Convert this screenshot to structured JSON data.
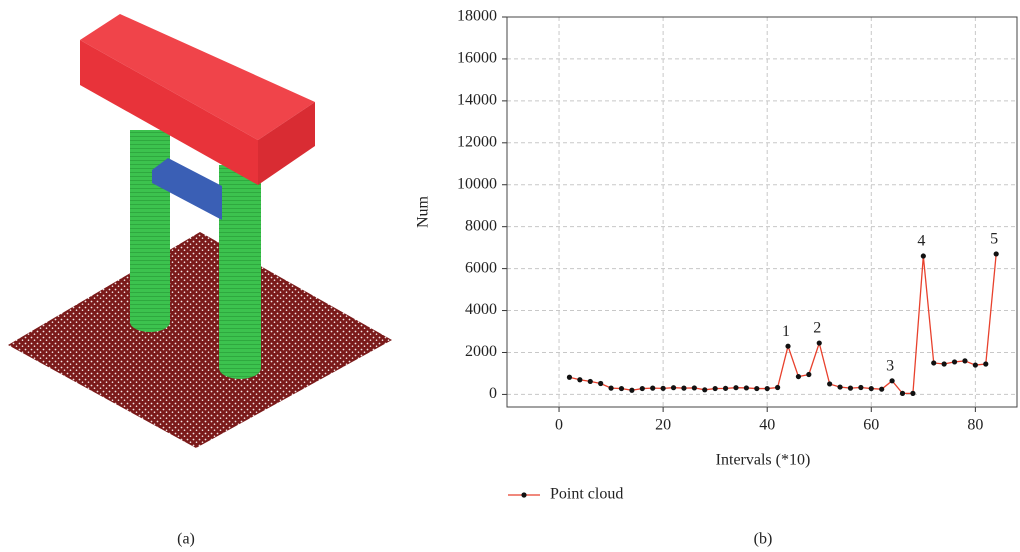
{
  "captions": [
    "(a)",
    "(b)"
  ],
  "chart_data": {
    "type": "line",
    "x_label": "Intervals (*10)",
    "y_label": "Num",
    "x": [
      2,
      4,
      6,
      8,
      10,
      12,
      14,
      16,
      18,
      20,
      22,
      24,
      26,
      28,
      30,
      32,
      34,
      36,
      38,
      40,
      42,
      44,
      46,
      48,
      50,
      52,
      54,
      56,
      58,
      60,
      62,
      64,
      66,
      68,
      70,
      72,
      74,
      76,
      78,
      80,
      82,
      84
    ],
    "series": [
      {
        "name": "Point cloud",
        "color": "#e8412d",
        "marker_color": "#111111",
        "values": [
          820,
          700,
          620,
          520,
          300,
          280,
          200,
          280,
          300,
          290,
          320,
          300,
          310,
          220,
          280,
          290,
          320,
          310,
          280,
          280,
          330,
          2300,
          850,
          950,
          2450,
          500,
          350,
          300,
          330,
          280,
          250,
          650,
          50,
          50,
          6600,
          1500,
          1450,
          1550,
          1600,
          1400,
          1450,
          6700
        ]
      }
    ],
    "annotations": [
      {
        "text": "1",
        "x": 44
      },
      {
        "text": "2",
        "x": 50
      },
      {
        "text": "3",
        "x": 64
      },
      {
        "text": "4",
        "x": 70
      },
      {
        "text": "5",
        "x": 84
      }
    ],
    "xlim": [
      -10,
      88
    ],
    "ylim": [
      -600,
      18000
    ],
    "xticks": [
      0,
      20,
      40,
      60,
      80
    ],
    "yticks": [
      0,
      2000,
      4000,
      6000,
      8000,
      10000,
      12000,
      14000,
      16000,
      18000
    ],
    "grid": true,
    "legend": "bottom"
  }
}
